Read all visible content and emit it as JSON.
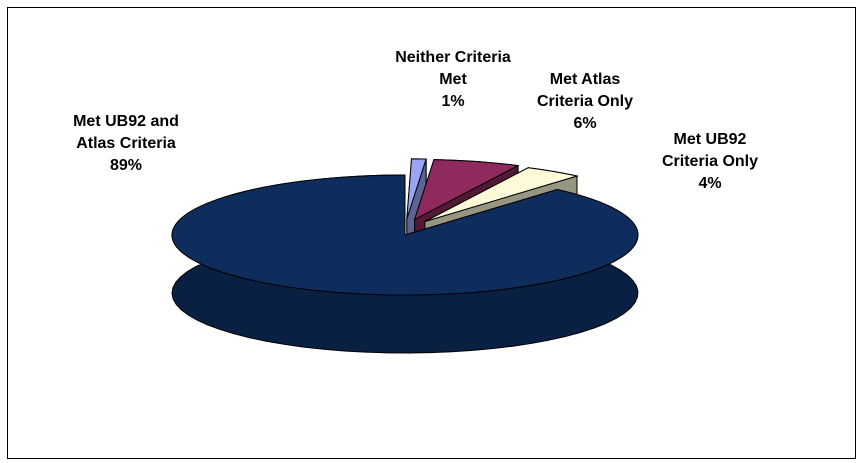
{
  "chart_data": {
    "type": "pie",
    "style": "3d-exploded",
    "slices": [
      {
        "label": [
          "Met UB92 and",
          "Atlas Criteria"
        ],
        "value": 89,
        "value_text": "89%",
        "color": "#0e2c5c"
      },
      {
        "label": [
          "Neither Criteria",
          "Met"
        ],
        "value": 1,
        "value_text": "1%",
        "color": "#9aa6f5"
      },
      {
        "label": [
          "Met Atlas",
          "Criteria Only"
        ],
        "value": 6,
        "value_text": "6%",
        "color": "#8e2a5e"
      },
      {
        "label": [
          "Met UB92",
          "Criteria Only"
        ],
        "value": 4,
        "value_text": "4%",
        "color": "#fcfad8"
      }
    ],
    "legend": "none"
  }
}
